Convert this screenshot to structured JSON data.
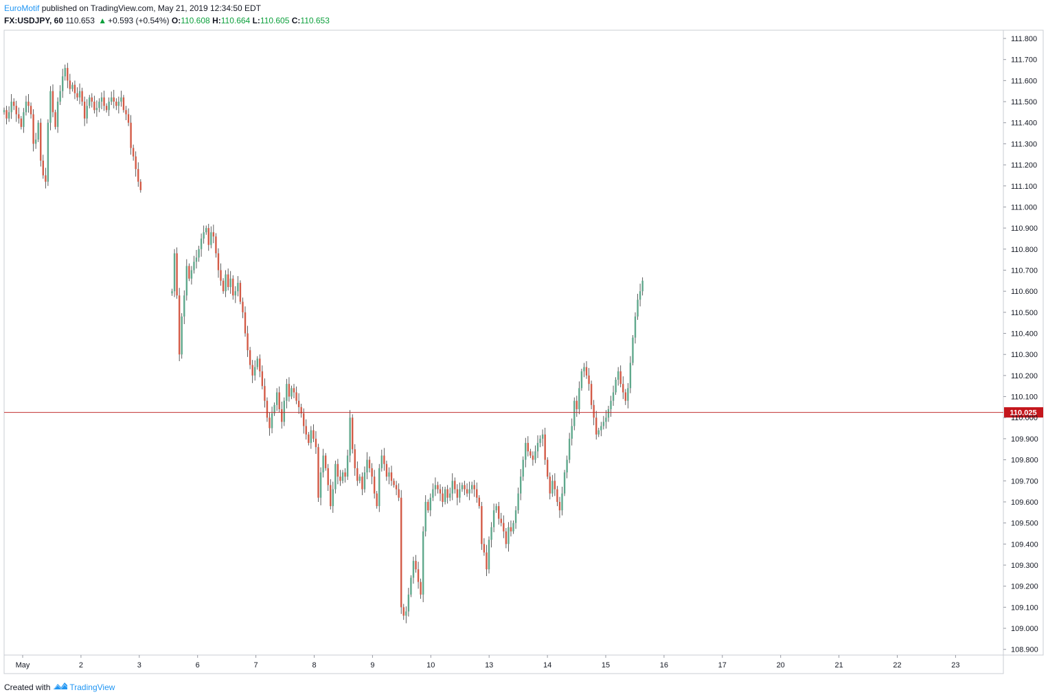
{
  "header": {
    "author": "EuroMotif",
    "published_text": "published on TradingView.com, May 21, 2019 12:34:50 EDT",
    "symbol": "FX:USDJPY, 60",
    "last": "110.653",
    "change": "+0.593 (+0.54%)",
    "open_label": "O:",
    "open": "110.608",
    "high_label": "H:",
    "high": "110.664",
    "low_label": "L:",
    "low": "110.605",
    "close_label": "C:",
    "close": "110.653"
  },
  "footer": {
    "created_with": "Created with",
    "brand": "TradingView"
  },
  "colors": {
    "up": "#5fa88c",
    "down": "#d35a46",
    "wick": "#333333",
    "hline": "#c02d2d",
    "badge": "#c4161c",
    "grid": "#e6e8ee",
    "brand": "#2196f3"
  },
  "chart_data": {
    "type": "candlestick",
    "title": "",
    "xlabel": "",
    "ylabel": "",
    "ylim": [
      108.86,
      111.86
    ],
    "y_ticks": [
      "111.800",
      "111.700",
      "111.600",
      "111.500",
      "111.400",
      "111.300",
      "111.200",
      "111.100",
      "111.000",
      "110.900",
      "110.800",
      "110.700",
      "110.600",
      "110.500",
      "110.400",
      "110.300",
      "110.200",
      "110.100",
      "110.000",
      "109.900",
      "109.800",
      "109.700",
      "109.600",
      "109.500",
      "109.400",
      "109.300",
      "109.200",
      "109.100",
      "109.000",
      "108.900"
    ],
    "y_tick_values": [
      111.8,
      111.7,
      111.6,
      111.5,
      111.4,
      111.3,
      111.2,
      111.1,
      111.0,
      110.9,
      110.8,
      110.7,
      110.6,
      110.5,
      110.4,
      110.3,
      110.2,
      110.1,
      110.0,
      109.9,
      109.8,
      109.7,
      109.6,
      109.5,
      109.4,
      109.3,
      109.2,
      109.1,
      109.0,
      108.9
    ],
    "x_ticks": [
      "May",
      "2",
      "3",
      "6",
      "7",
      "8",
      "9",
      "10",
      "13",
      "14",
      "15",
      "16",
      "17",
      "20",
      "21",
      "22",
      "23"
    ],
    "x_tick_index": [
      0,
      1,
      2,
      3,
      4,
      5,
      6,
      7,
      8,
      9,
      10,
      11,
      12,
      13,
      14,
      15,
      16
    ],
    "horizontal_line": {
      "value": 110.025,
      "label": "110.025"
    },
    "grid": false,
    "segments": [
      {
        "day_start": 0.0,
        "closes": [
          111.46,
          111.42,
          111.45,
          111.5,
          111.48,
          111.44,
          111.42,
          111.38,
          111.45,
          111.5,
          111.48,
          111.44,
          111.3,
          111.32,
          111.4,
          111.22,
          111.15,
          111.12,
          111.4,
          111.55,
          111.45,
          111.38,
          111.5,
          111.55,
          111.62,
          111.66,
          111.6,
          111.56,
          111.58,
          111.54,
          111.52,
          111.55,
          111.5,
          111.42,
          111.48,
          111.52,
          111.5,
          111.46,
          111.47,
          111.5,
          111.52,
          111.48,
          111.46,
          111.5,
          111.52,
          111.5,
          111.48,
          111.5,
          111.52,
          111.46,
          111.44,
          111.4,
          111.28,
          111.24,
          111.18,
          111.12,
          111.08
        ]
      },
      {
        "day_start": 2.88,
        "closes": [
          110.6,
          110.78,
          110.58,
          110.3,
          110.48,
          110.58,
          110.72,
          110.66,
          110.7,
          110.74,
          110.76,
          110.8,
          110.85,
          110.88,
          110.9,
          110.82,
          110.88,
          110.86,
          110.78,
          110.7,
          110.65,
          110.6,
          110.68,
          110.62,
          110.66,
          110.58,
          110.6,
          110.64,
          110.55,
          110.5,
          110.4,
          110.32,
          110.25,
          110.2,
          110.24,
          110.28,
          110.22,
          110.15,
          110.08,
          110.0,
          109.95,
          110.02,
          110.06,
          110.12,
          110.04,
          109.98,
          110.08,
          110.16,
          110.1,
          110.14,
          110.12,
          110.08,
          110.05,
          110.02,
          109.96,
          109.92,
          109.88,
          109.94,
          109.9,
          109.86,
          109.62,
          109.74,
          109.82,
          109.76,
          109.68,
          109.58,
          109.66,
          109.78,
          109.72,
          109.7,
          109.74,
          109.72,
          109.82,
          110.0,
          109.85,
          109.76,
          109.7,
          109.72,
          109.66,
          109.74,
          109.8,
          109.76,
          109.72,
          109.64,
          109.58,
          109.76,
          109.82,
          109.78,
          109.72,
          109.74,
          109.7,
          109.68,
          109.66,
          109.62,
          109.1,
          109.06,
          109.08,
          109.16,
          109.24,
          109.32,
          109.28,
          109.22,
          109.16,
          109.46,
          109.6,
          109.56,
          109.62,
          109.66,
          109.68,
          109.66,
          109.64,
          109.6,
          109.66,
          109.62,
          109.64,
          109.7,
          109.66,
          109.62,
          109.66,
          109.68,
          109.66,
          109.64,
          109.66,
          109.68,
          109.66,
          109.62,
          109.58,
          109.4,
          109.36,
          109.28,
          109.42,
          109.48,
          109.56,
          109.58,
          109.52,
          109.5,
          109.46,
          109.4,
          109.48,
          109.46,
          109.5,
          109.56,
          109.64,
          109.72,
          109.8,
          109.88,
          109.84,
          109.82,
          109.8,
          109.84,
          109.88,
          109.9,
          109.92,
          109.8,
          109.72,
          109.64,
          109.7,
          109.66,
          109.6,
          109.56,
          109.64,
          109.74,
          109.8,
          109.9,
          109.96,
          110.08,
          110.04,
          110.14,
          110.22,
          110.24,
          110.2,
          110.16,
          110.06,
          110.0,
          109.92,
          109.94,
          109.96,
          109.98,
          110.0,
          110.04,
          110.08,
          110.12,
          110.18,
          110.22,
          110.16,
          110.12,
          110.08,
          110.14,
          110.26,
          110.38,
          110.48,
          110.56,
          110.6,
          110.65
        ]
      }
    ]
  }
}
